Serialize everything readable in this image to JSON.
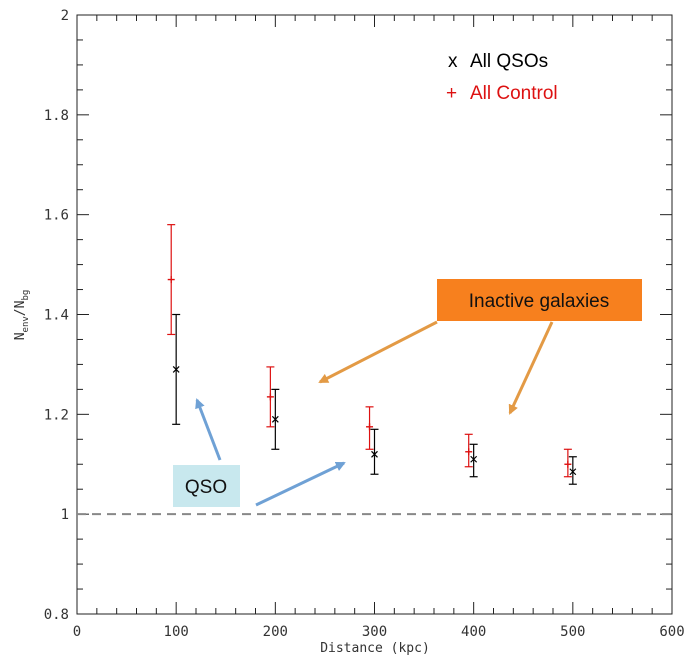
{
  "chart_data": {
    "type": "scatter",
    "xlabel": "Distance (kpc)",
    "ylabel": "N_env/N_bg",
    "xlim": [
      0,
      600
    ],
    "ylim": [
      0.8,
      2.0
    ],
    "x_ticks": [
      "0",
      "100",
      "200",
      "300",
      "400",
      "500",
      "600"
    ],
    "y_ticks": [
      "0.8",
      "1",
      "1.2",
      "1.4",
      "1.6",
      "1.8",
      "2"
    ],
    "reference_line": {
      "y": 1.0,
      "style": "dashed"
    },
    "series": [
      {
        "name": "All QSOs",
        "marker": "x",
        "color": "#000000",
        "points": [
          {
            "x": 100,
            "y": 1.29,
            "err_low": 1.18,
            "err_high": 1.4
          },
          {
            "x": 200,
            "y": 1.19,
            "err_low": 1.13,
            "err_high": 1.25
          },
          {
            "x": 300,
            "y": 1.12,
            "err_low": 1.08,
            "err_high": 1.17
          },
          {
            "x": 400,
            "y": 1.11,
            "err_low": 1.075,
            "err_high": 1.14
          },
          {
            "x": 500,
            "y": 1.085,
            "err_low": 1.06,
            "err_high": 1.115
          }
        ]
      },
      {
        "name": "All Control",
        "marker": "+",
        "color": "#dd1111",
        "points": [
          {
            "x": 95,
            "y": 1.47,
            "err_low": 1.36,
            "err_high": 1.58
          },
          {
            "x": 195,
            "y": 1.235,
            "err_low": 1.175,
            "err_high": 1.295
          },
          {
            "x": 295,
            "y": 1.175,
            "err_low": 1.13,
            "err_high": 1.215
          },
          {
            "x": 395,
            "y": 1.125,
            "err_low": 1.095,
            "err_high": 1.16
          },
          {
            "x": 495,
            "y": 1.1,
            "err_low": 1.075,
            "err_high": 1.13
          }
        ]
      }
    ],
    "legend": {
      "placement": "top-right",
      "entries": [
        {
          "symbol": "x",
          "label": "All QSOs",
          "color": "#000000"
        },
        {
          "symbol": "+",
          "label": "All Control",
          "color": "#dd1111"
        }
      ]
    }
  },
  "annotations": {
    "inactive": {
      "text": "Inactive galaxies",
      "bg": "#f7801e"
    },
    "qso": {
      "text": "QSO",
      "bg": "#c8e8ee"
    },
    "arrow_colors": {
      "orange": "#e39a45",
      "blue": "#6fa1d5"
    }
  }
}
